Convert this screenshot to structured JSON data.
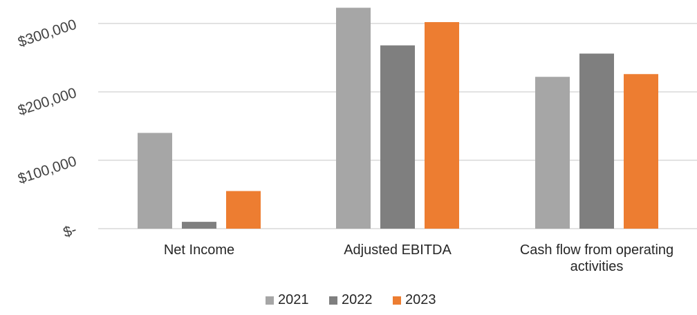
{
  "chart_data": {
    "type": "bar",
    "title": "",
    "xlabel": "",
    "ylabel": "",
    "categories": [
      [
        "Net Income"
      ],
      [
        "Adjusted EBITDA"
      ],
      [
        "Cash flow from operating",
        "activities"
      ]
    ],
    "series": [
      {
        "name": "2021",
        "color": "#a6a6a6",
        "values": [
          140000,
          323000,
          222000
        ]
      },
      {
        "name": "2022",
        "color": "#7f7f7f",
        "values": [
          10000,
          268000,
          256000
        ]
      },
      {
        "name": "2023",
        "color": "#ed7d31",
        "values": [
          55000,
          302000,
          226000
        ]
      }
    ],
    "ylim": [
      0,
      320000
    ],
    "yticks": [
      {
        "value": 0,
        "label": "$-"
      },
      {
        "value": 100000,
        "label": "$100,000"
      },
      {
        "value": 200000,
        "label": "$200,000"
      },
      {
        "value": 300000,
        "label": "$300,000"
      }
    ],
    "grid": true,
    "legend": "bottom-center"
  }
}
